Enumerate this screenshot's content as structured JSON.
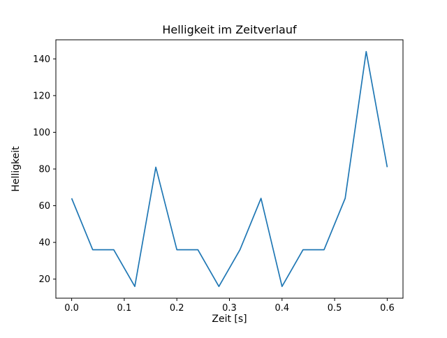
{
  "chart_data": {
    "type": "line",
    "title": "Helligkeit im Zeitverlauf",
    "xlabel": "Zeit [s]",
    "ylabel": "Helligkeit",
    "line_color": "#1f77b4",
    "x": [
      0.0,
      0.04,
      0.08,
      0.12,
      0.16,
      0.2,
      0.24,
      0.28,
      0.32,
      0.36,
      0.4,
      0.44,
      0.48,
      0.52,
      0.56,
      0.6
    ],
    "values": [
      64,
      36,
      36,
      16,
      81,
      36,
      36,
      16,
      36,
      64,
      16,
      36,
      36,
      64,
      144,
      81
    ],
    "xlim": [
      -0.03,
      0.63
    ],
    "ylim": [
      9.6,
      150.4
    ],
    "xticks": [
      0.0,
      0.1,
      0.2,
      0.3,
      0.4,
      0.5,
      0.6
    ],
    "xtick_labels": [
      "0.0",
      "0.1",
      "0.2",
      "0.3",
      "0.4",
      "0.5",
      "0.6"
    ],
    "yticks": [
      20,
      40,
      60,
      80,
      100,
      120,
      140
    ],
    "ytick_labels": [
      "20",
      "40",
      "60",
      "80",
      "100",
      "120",
      "140"
    ],
    "grid": false,
    "legend_position": "none"
  }
}
